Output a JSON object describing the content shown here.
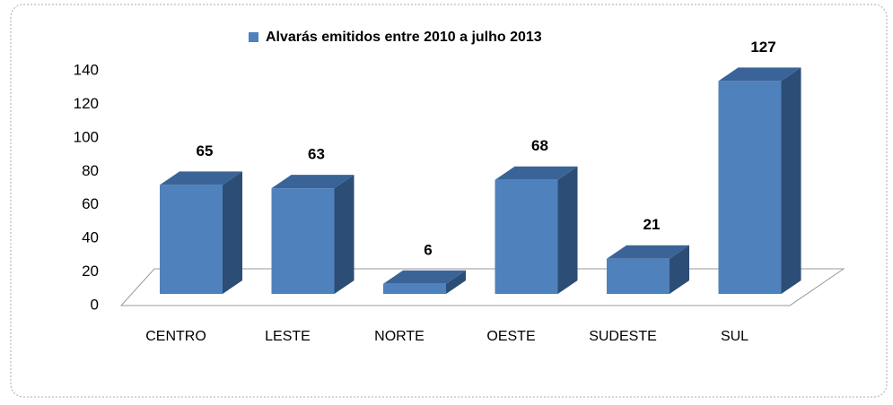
{
  "chart_data": {
    "type": "bar",
    "categories": [
      "CENTRO",
      "LESTE",
      "NORTE",
      "OESTE",
      "SUDESTE",
      "SUL"
    ],
    "series": [
      {
        "name": "Alvarás emitidos entre 2010 a julho 2013",
        "color": "#4f81bd",
        "values": [
          65,
          63,
          6,
          68,
          21,
          127
        ]
      }
    ],
    "ylim": [
      0,
      140
    ],
    "yticks": [
      0,
      20,
      40,
      60,
      80,
      100,
      120,
      140
    ],
    "grid": false,
    "legend": "top"
  }
}
